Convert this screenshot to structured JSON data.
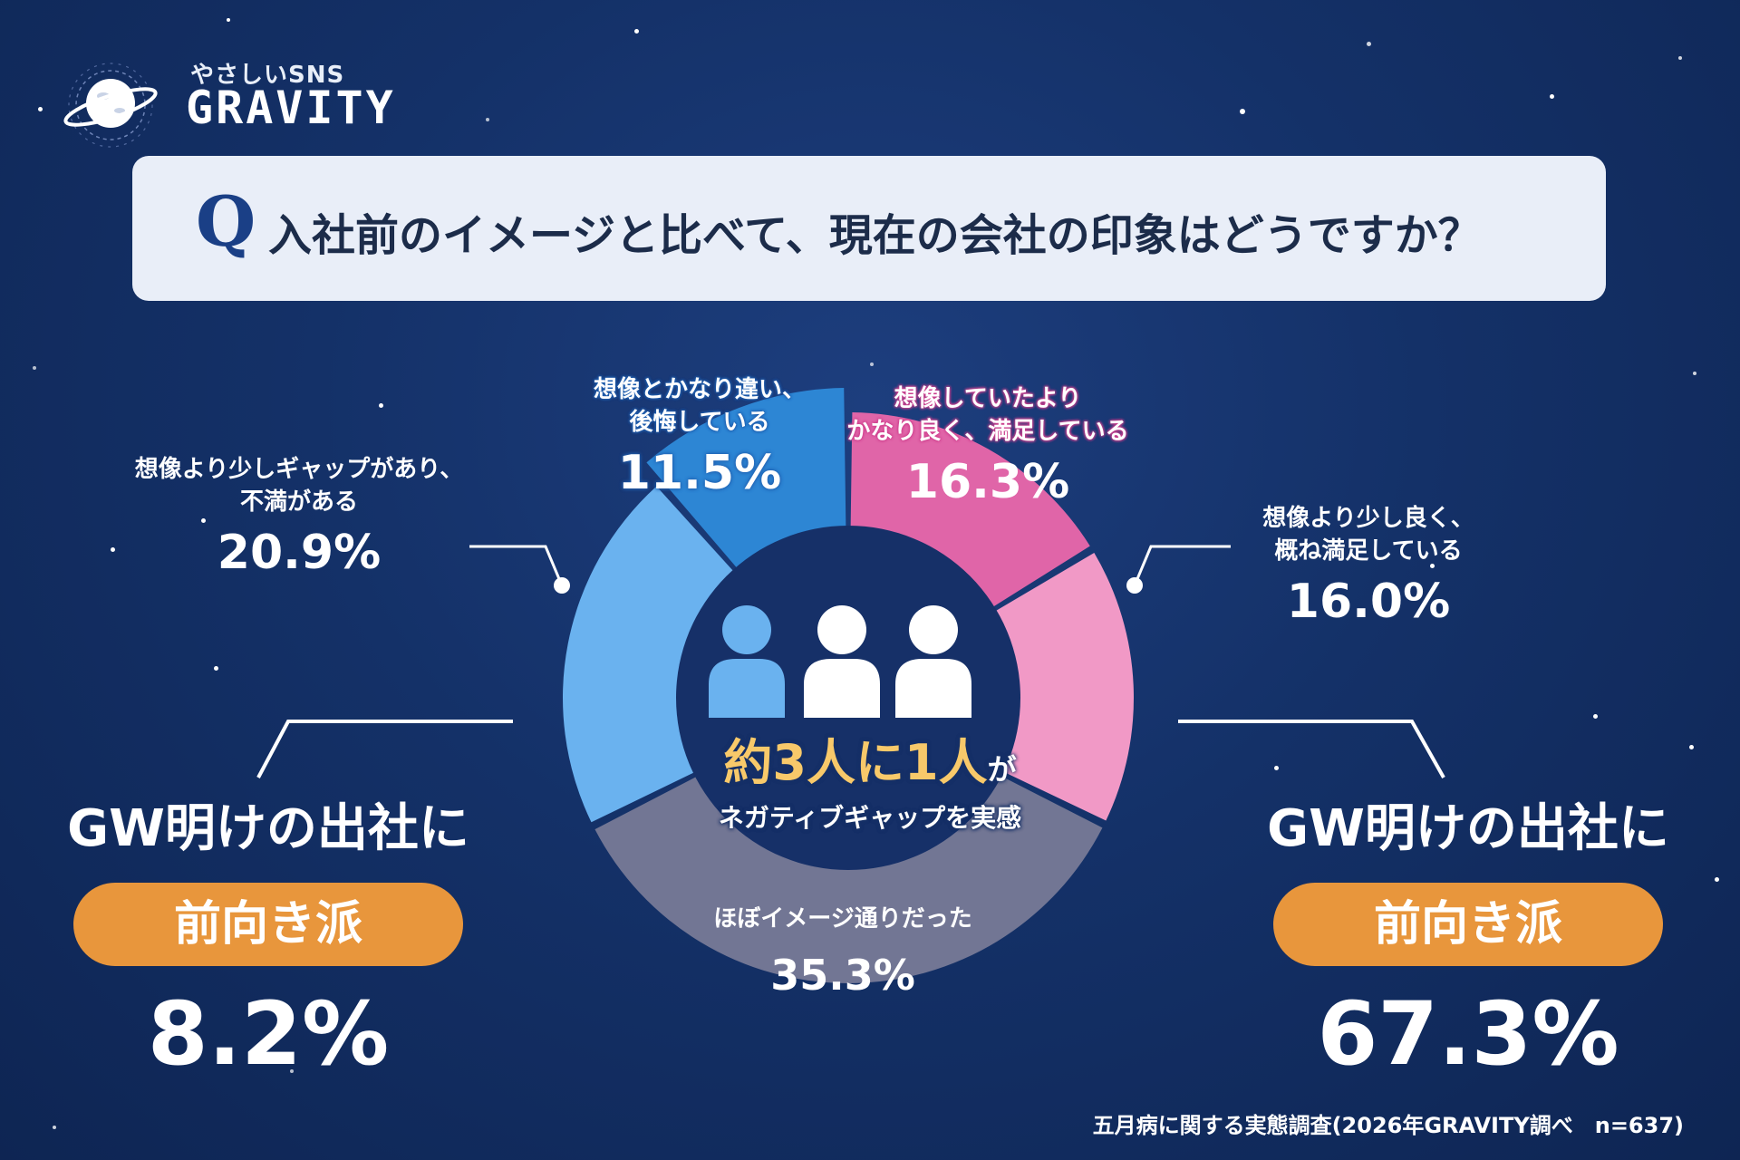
{
  "logo": {
    "sub": "やさしいSNS",
    "main": "GRAVITY"
  },
  "question": {
    "mark": "Q",
    "text": "入社前のイメージと比べて、現在の会社の印象はどうですか？"
  },
  "center": {
    "prefix": "約",
    "n1": "3",
    "unit1": "人に",
    "n2": "1",
    "unit2": "人",
    "particle": "が",
    "sub": "ネガティブギャップを実感"
  },
  "left_group": {
    "head": "GW明けの出社に",
    "badge": "前向き派",
    "value": "8.2%"
  },
  "right_group": {
    "head": "GW明けの出社に",
    "badge": "前向き派",
    "value": "67.3%"
  },
  "footer": "五月病に関する実態調査(2026年GRAVITY調べ　n=637)",
  "colors": {
    "much_better": "#e065a8",
    "slightly_better": "#f199c6",
    "as_expected": "#727694",
    "slight_gap": "#6ab2ef",
    "very_different": "#2d86d4",
    "badge": "#e8963c",
    "accent_text": "#f8c96a"
  },
  "chart_data": {
    "type": "pie",
    "variant": "donut",
    "categories": [
      "想像していたよりかなり良く、満足している",
      "想像より少し良く、概ね満足している",
      "ほぼイメージ通りだった",
      "想像より少しギャップがあり、不満がある",
      "想像とかなり違い、後悔している"
    ],
    "values": [
      16.3,
      16.0,
      35.3,
      20.9,
      11.5
    ],
    "value_labels": [
      "16.3%",
      "16.0%",
      "35.3%",
      "20.9%",
      "11.5%"
    ],
    "label_lines": [
      [
        "想像していたより",
        "かなり良く、満足している"
      ],
      [
        "想像より少し良く、",
        "概ね満足している"
      ],
      [
        "ほぼイメージ通りだった"
      ],
      [
        "想像より少しギャップがあり、",
        "不満がある"
      ],
      [
        "想像とかなり違い、",
        "後悔している"
      ]
    ],
    "title": "入社前のイメージと比べて、現在の会社の印象はどうですか？"
  }
}
